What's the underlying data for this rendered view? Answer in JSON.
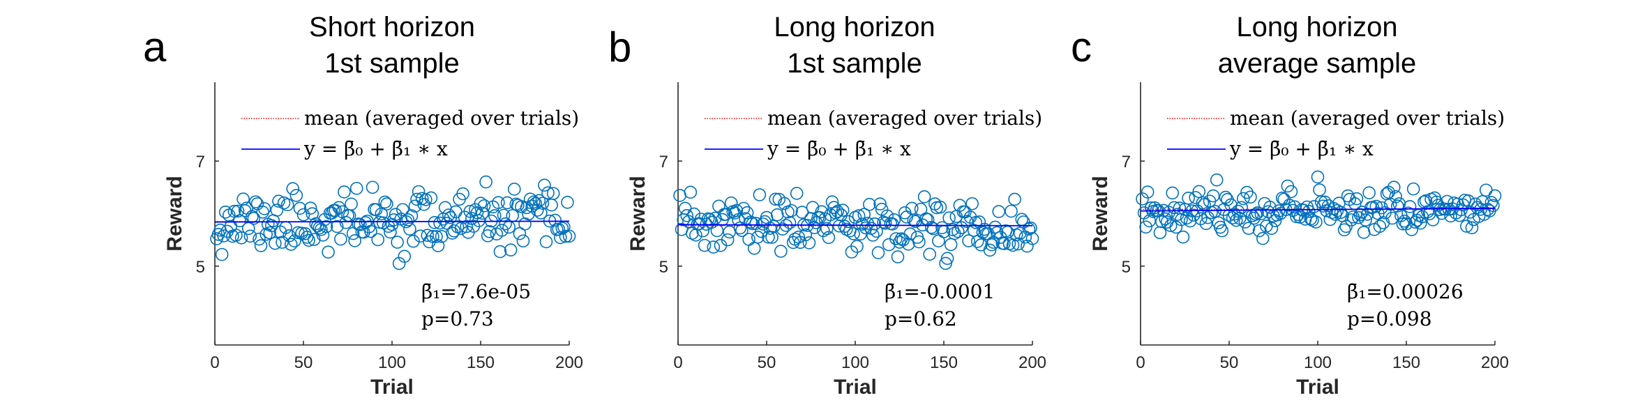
{
  "chart_data": [
    {
      "type": "scatter",
      "panel_letter": "a",
      "title_lines": [
        "Short horizon",
        "1st sample"
      ],
      "xlabel": "Trial",
      "ylabel": "Reward",
      "xlim": [
        0,
        200
      ],
      "ylim": [
        3.5,
        8.5
      ],
      "xticks": [
        "0",
        "50",
        "100",
        "150",
        "200"
      ],
      "yticks": [
        "5",
        "7"
      ],
      "legend": [
        {
          "label": "mean (averaged over trials)",
          "color": "#ff0000",
          "style": "dotted"
        },
        {
          "label": "y = β̄₀ + β̄₁ ∗ x",
          "color": "#0000ff",
          "style": "solid"
        }
      ],
      "mean": 5.85,
      "fit": {
        "intercept": 5.84,
        "slope": 7.6e-05
      },
      "stats": {
        "beta1": "β̄₁=7.6e-05",
        "p": "p=0.73"
      },
      "marker_color": "#0072BD",
      "seed": 11,
      "noise_sd": 0.28
    },
    {
      "type": "scatter",
      "panel_letter": "b",
      "title_lines": [
        "Long horizon",
        "1st sample"
      ],
      "xlabel": "Trial",
      "ylabel": "Reward",
      "xlim": [
        0,
        200
      ],
      "ylim": [
        3.5,
        8.5
      ],
      "xticks": [
        "0",
        "50",
        "100",
        "150",
        "200"
      ],
      "yticks": [
        "5",
        "7"
      ],
      "legend": [
        {
          "label": "mean (averaged over trials)",
          "color": "#ff0000",
          "style": "dotted"
        },
        {
          "label": "y = β̄₀ + β̄₁ ∗ x",
          "color": "#0000ff",
          "style": "solid"
        }
      ],
      "mean": 5.77,
      "fit": {
        "intercept": 5.79,
        "slope": -0.0001
      },
      "stats": {
        "beta1": "β̄₁=-0.0001",
        "p": "p=0.62"
      },
      "marker_color": "#0072BD",
      "seed": 23,
      "noise_sd": 0.28
    },
    {
      "type": "scatter",
      "panel_letter": "c",
      "title_lines": [
        "Long horizon",
        "average sample"
      ],
      "xlabel": "Trial",
      "ylabel": "Reward",
      "xlim": [
        0,
        200
      ],
      "ylim": [
        3.5,
        8.5
      ],
      "xticks": [
        "0",
        "50",
        "100",
        "150",
        "200"
      ],
      "yticks": [
        "5",
        "7"
      ],
      "legend": [
        {
          "label": "mean (averaged over trials)",
          "color": "#ff0000",
          "style": "dotted"
        },
        {
          "label": "y = β̄₀ + β̄₁ ∗ x",
          "color": "#0000ff",
          "style": "solid"
        }
      ],
      "mean": 6.08,
      "fit": {
        "intercept": 6.05,
        "slope": 0.00026
      },
      "stats": {
        "beta1": "β̄₁=0.00026",
        "p": "p=0.098"
      },
      "marker_color": "#0072BD",
      "seed": 37,
      "noise_sd": 0.2
    }
  ]
}
